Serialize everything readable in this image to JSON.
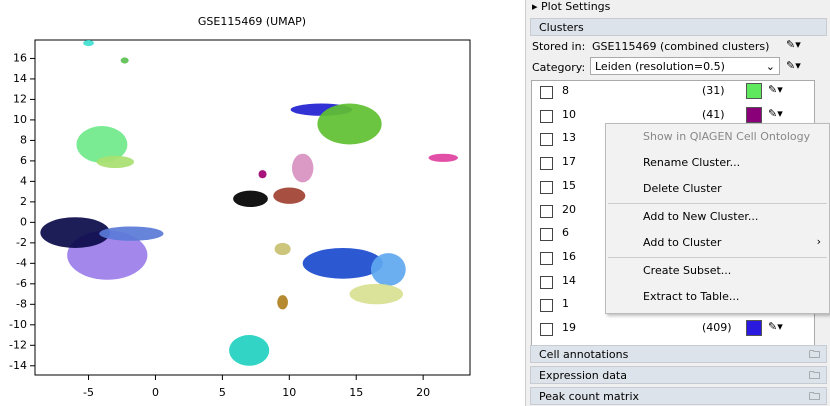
{
  "chart_data": {
    "type": "scatter",
    "title": "GSE115469 (UMAP)",
    "xlim": [
      -9,
      23.5
    ],
    "ylim": [
      -14.9,
      17.8
    ],
    "xticks": [
      -5,
      0,
      5,
      10,
      15,
      20
    ],
    "yticks": [
      -14,
      -12,
      -10,
      -8,
      -6,
      -4,
      -2,
      0,
      2,
      4,
      6,
      8,
      10,
      12,
      14,
      16
    ],
    "series": [
      {
        "color": "#9b7de8",
        "x": -3.6,
        "y": -3.2,
        "rx": 3,
        "ry": 2.4
      },
      {
        "color": "#0a0a4a",
        "x": -6,
        "y": -1,
        "rx": 2.6,
        "ry": 1.5
      },
      {
        "color": "#5a7ad8",
        "x": -1.8,
        "y": -1.1,
        "rx": 2.4,
        "ry": 0.7
      },
      {
        "color": "#6fe88a",
        "x": -4,
        "y": 7.6,
        "rx": 1.9,
        "ry": 1.8
      },
      {
        "color": "#a8e070",
        "x": -3,
        "y": 5.9,
        "rx": 1.4,
        "ry": 0.6
      },
      {
        "color": "#40e0d0",
        "x": -5,
        "y": 17.5,
        "rx": 0.4,
        "ry": 0.3
      },
      {
        "color": "#5cc050",
        "x": -2.3,
        "y": 15.8,
        "rx": 0.3,
        "ry": 0.3
      },
      {
        "color": "#2020d0",
        "x": 12.4,
        "y": 11,
        "rx": 2.3,
        "ry": 0.6
      },
      {
        "color": "#60c030",
        "x": 14.5,
        "y": 9.6,
        "rx": 2.4,
        "ry": 2
      },
      {
        "color": "#d890c0",
        "x": 11,
        "y": 5.3,
        "rx": 0.8,
        "ry": 1.4
      },
      {
        "color": "#a04030",
        "x": 10,
        "y": 2.6,
        "rx": 1.2,
        "ry": 0.8
      },
      {
        "color": "#000000",
        "x": 7.1,
        "y": 2.3,
        "rx": 1.3,
        "ry": 0.8
      },
      {
        "color": "#a00070",
        "x": 8,
        "y": 4.7,
        "rx": 0.3,
        "ry": 0.4
      },
      {
        "color": "#e040a0",
        "x": 21.5,
        "y": 6.3,
        "rx": 1.1,
        "ry": 0.4
      },
      {
        "color": "#1a4acd",
        "x": 14,
        "y": -4,
        "rx": 3,
        "ry": 1.5
      },
      {
        "color": "#60a8f0",
        "x": 17.4,
        "y": -4.6,
        "rx": 1.3,
        "ry": 1.6
      },
      {
        "color": "#d8e090",
        "x": 16.5,
        "y": -7,
        "rx": 2,
        "ry": 1
      },
      {
        "color": "#c8c070",
        "x": 9.5,
        "y": -2.6,
        "rx": 0.6,
        "ry": 0.6
      },
      {
        "color": "#b08020",
        "x": 9.5,
        "y": -7.8,
        "rx": 0.4,
        "ry": 0.7
      },
      {
        "color": "#20d0c0",
        "x": 7,
        "y": -12.5,
        "rx": 1.5,
        "ry": 1.5
      }
    ]
  },
  "panel": {
    "title": "Plot Settings",
    "section": "Clusters",
    "stored_in": {
      "label": "Stored in:",
      "value": "GSE115469 (combined clusters)"
    },
    "category": {
      "label": "Category:",
      "value": "Leiden (resolution=0.5)"
    },
    "rows": [
      {
        "id": "8",
        "count": "(31)",
        "color": "#5ee85e"
      },
      {
        "id": "10",
        "count": "(41)",
        "color": "#8a0078"
      },
      {
        "id": "13"
      },
      {
        "id": "17"
      },
      {
        "id": "15"
      },
      {
        "id": "20"
      },
      {
        "id": "6"
      },
      {
        "id": "16"
      },
      {
        "id": "14"
      },
      {
        "id": "1"
      },
      {
        "id": "19",
        "count": "(409)",
        "color": "#2a1ae0"
      }
    ],
    "menu": [
      "Show in QIAGEN Cell Ontology",
      "Rename Cluster...",
      "Delete Cluster",
      "Add to New Cluster...",
      "Add to Cluster",
      "Create Subset...",
      "Extract to Table..."
    ],
    "sections": [
      "Cell annotations",
      "Expression data",
      "Peak count matrix"
    ]
  }
}
